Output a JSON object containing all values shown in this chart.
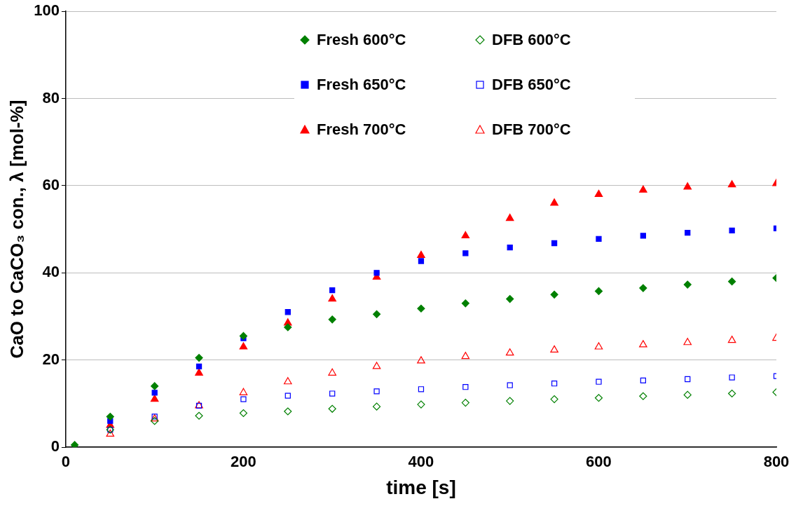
{
  "chart_data": {
    "type": "scatter",
    "xlabel": "time [s]",
    "ylabel": "CaO to CaCO₃ con., λ [mol-%]",
    "x": [
      10,
      50,
      100,
      150,
      200,
      250,
      300,
      350,
      400,
      450,
      500,
      550,
      600,
      650,
      700,
      750,
      800
    ],
    "xlim": [
      0,
      800
    ],
    "xticks": [
      0,
      200,
      400,
      600,
      800
    ],
    "ylim": [
      0,
      100
    ],
    "yticks": [
      0,
      20,
      40,
      60,
      80,
      100
    ],
    "grid": "y",
    "legend": "top",
    "series": [
      {
        "name": "Fresh 600°C",
        "color": "#008000",
        "marker": "diamond",
        "values": [
          0.5,
          7,
          14,
          20.5,
          25.5,
          27.5,
          29.3,
          30.5,
          31.8,
          33,
          34,
          35,
          35.8,
          36.5,
          37.3,
          38,
          38.8
        ]
      },
      {
        "name": "DFB 600°C",
        "color": "#008000",
        "marker": "diamond",
        "values": [
          null,
          4,
          6,
          7.2,
          7.8,
          8.2,
          8.8,
          9.3,
          9.8,
          10.2,
          10.6,
          11,
          11.3,
          11.7,
          12,
          12.3,
          12.6
        ]
      },
      {
        "name": "Fresh 650°C",
        "color": "#0000ff",
        "marker": "square",
        "values": [
          null,
          6,
          12.5,
          18.5,
          25,
          31,
          36,
          40,
          42.7,
          44.5,
          45.8,
          46.8,
          47.8,
          48.5,
          49.2,
          49.7,
          50.2
        ]
      },
      {
        "name": "DFB 650°C",
        "color": "#0000ff",
        "marker": "square",
        "values": [
          null,
          4,
          7,
          9.5,
          11,
          11.8,
          12.3,
          12.8,
          13.3,
          13.8,
          14.2,
          14.6,
          15,
          15.3,
          15.6,
          16,
          16.3
        ]
      },
      {
        "name": "Fresh 700°C",
        "color": "#ff0000",
        "marker": "triangle",
        "values": [
          null,
          5,
          11,
          17,
          23,
          28.5,
          34,
          39,
          44,
          48.5,
          52.5,
          56,
          58,
          59,
          59.7,
          60.2,
          60.5
        ]
      },
      {
        "name": "DFB 700°C",
        "color": "#ff0000",
        "marker": "triangle",
        "x": [
          50,
          100,
          150,
          200,
          250,
          300,
          350,
          400,
          450,
          500,
          550,
          600,
          650,
          700,
          750,
          800
        ],
        "values": [
          3,
          6.5,
          9.5,
          12.5,
          15,
          17,
          18.5,
          19.8,
          20.8,
          21.6,
          22.3,
          23,
          23.5,
          24,
          24.5,
          25
        ]
      }
    ]
  }
}
